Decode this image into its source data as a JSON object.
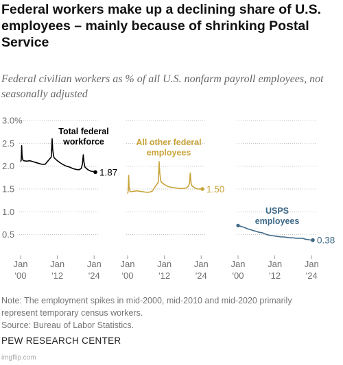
{
  "title": "Federal workers make up a declining share of U.S. employees – mainly because of shrinking Postal Service",
  "subtitle": "Federal civilian workers as % of all U.S. nonfarm payroll employees, not seasonally adjusted",
  "note_line1": "Note: The employment spikes in mid-2000, mid-2010 and mid-2020 primarily",
  "note_line2": "represent temporary census workers.",
  "source": "Source: Bureau of Labor Statistics.",
  "brand": "PEW RESEARCH CENTER",
  "watermark": "imgflip.com",
  "chart_data": {
    "type": "line",
    "ylim": [
      0,
      3.0
    ],
    "yticks": [
      "3.0%",
      "2.5",
      "2.0",
      "1.5",
      "1.0",
      "0.5"
    ],
    "ytick_values": [
      3.0,
      2.5,
      2.0,
      1.5,
      1.0,
      0.5
    ],
    "xticks": [
      [
        "Jan",
        "'00"
      ],
      [
        "Jan",
        "'12"
      ],
      [
        "Jan",
        "'24"
      ]
    ],
    "xtick_values": [
      2000,
      2012,
      2024
    ],
    "grid": true,
    "series": [
      {
        "name": "Total federal workforce",
        "color": "#000000",
        "end_label": "1.87",
        "points": [
          [
            2000.0,
            2.1
          ],
          [
            2000.2,
            2.13
          ],
          [
            2000.35,
            2.45
          ],
          [
            2000.5,
            2.22
          ],
          [
            2000.7,
            2.14
          ],
          [
            2001,
            2.12
          ],
          [
            2002,
            2.11
          ],
          [
            2003,
            2.12
          ],
          [
            2004,
            2.1
          ],
          [
            2005,
            2.08
          ],
          [
            2006,
            2.06
          ],
          [
            2007,
            2.04
          ],
          [
            2008,
            2.04
          ],
          [
            2009,
            2.12
          ],
          [
            2010,
            2.2
          ],
          [
            2010.3,
            2.6
          ],
          [
            2010.5,
            2.35
          ],
          [
            2010.8,
            2.22
          ],
          [
            2011,
            2.18
          ],
          [
            2012,
            2.12
          ],
          [
            2013,
            2.07
          ],
          [
            2014,
            2.03
          ],
          [
            2015,
            2.0
          ],
          [
            2016,
            1.98
          ],
          [
            2017,
            1.95
          ],
          [
            2018,
            1.93
          ],
          [
            2019,
            1.92
          ],
          [
            2019.8,
            1.95
          ],
          [
            2020.2,
            2.05
          ],
          [
            2020.45,
            2.25
          ],
          [
            2020.7,
            2.08
          ],
          [
            2021,
            1.98
          ],
          [
            2022,
            1.92
          ],
          [
            2023,
            1.89
          ],
          [
            2024,
            1.88
          ],
          [
            2024.4,
            1.87
          ]
        ]
      },
      {
        "name": "All other federal employees",
        "color": "#c8a43b",
        "end_label": "1.50",
        "points": [
          [
            2000.0,
            1.4
          ],
          [
            2000.2,
            1.45
          ],
          [
            2000.35,
            1.8
          ],
          [
            2000.5,
            1.55
          ],
          [
            2000.7,
            1.46
          ],
          [
            2001,
            1.44
          ],
          [
            2002,
            1.45
          ],
          [
            2003,
            1.46
          ],
          [
            2004,
            1.45
          ],
          [
            2005,
            1.44
          ],
          [
            2006,
            1.43
          ],
          [
            2007,
            1.43
          ],
          [
            2008,
            1.45
          ],
          [
            2009,
            1.55
          ],
          [
            2010,
            1.65
          ],
          [
            2010.3,
            2.1
          ],
          [
            2010.5,
            1.85
          ],
          [
            2010.8,
            1.7
          ],
          [
            2011,
            1.65
          ],
          [
            2012,
            1.6
          ],
          [
            2013,
            1.56
          ],
          [
            2014,
            1.54
          ],
          [
            2015,
            1.53
          ],
          [
            2016,
            1.52
          ],
          [
            2017,
            1.51
          ],
          [
            2018,
            1.51
          ],
          [
            2019,
            1.52
          ],
          [
            2019.8,
            1.56
          ],
          [
            2020.2,
            1.62
          ],
          [
            2020.45,
            1.85
          ],
          [
            2020.7,
            1.63
          ],
          [
            2021,
            1.57
          ],
          [
            2022,
            1.52
          ],
          [
            2023,
            1.5
          ],
          [
            2024,
            1.5
          ],
          [
            2024.4,
            1.5
          ]
        ]
      },
      {
        "name": "USPS employees",
        "color": "#3e6987",
        "end_label": "0.38",
        "points": [
          [
            2000.0,
            0.7
          ],
          [
            2001,
            0.68
          ],
          [
            2002,
            0.66
          ],
          [
            2003,
            0.63
          ],
          [
            2004,
            0.61
          ],
          [
            2005,
            0.59
          ],
          [
            2006,
            0.57
          ],
          [
            2007,
            0.55
          ],
          [
            2008,
            0.54
          ],
          [
            2009,
            0.51
          ],
          [
            2010,
            0.49
          ],
          [
            2011,
            0.48
          ],
          [
            2012,
            0.47
          ],
          [
            2013,
            0.46
          ],
          [
            2014,
            0.45
          ],
          [
            2015,
            0.45
          ],
          [
            2016,
            0.44
          ],
          [
            2017,
            0.43
          ],
          [
            2018,
            0.43
          ],
          [
            2019,
            0.42
          ],
          [
            2020,
            0.42
          ],
          [
            2021,
            0.42
          ],
          [
            2022,
            0.4
          ],
          [
            2023,
            0.39
          ],
          [
            2024,
            0.38
          ],
          [
            2024.4,
            0.38
          ]
        ]
      }
    ],
    "panel_labels": [
      [
        "Total federal",
        "workforce"
      ],
      [
        "All other federal",
        "employees"
      ],
      [
        "USPS",
        "employees"
      ]
    ]
  }
}
